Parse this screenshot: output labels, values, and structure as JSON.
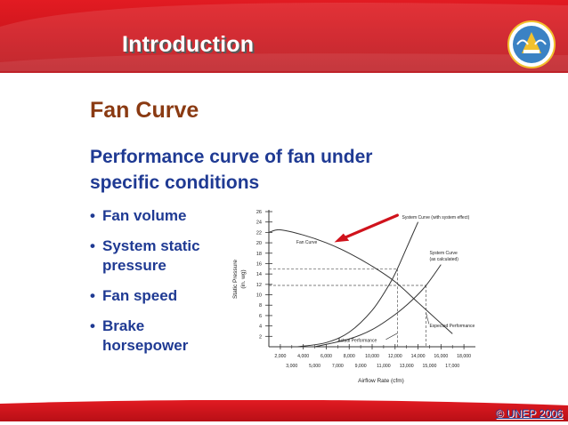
{
  "slide": {
    "title": "Introduction",
    "heading": "Fan Curve",
    "subheading_line1": "Performance curve of fan under",
    "subheading_line2": "specific conditions",
    "bullets": [
      {
        "line1": "Fan volume",
        "line2": ""
      },
      {
        "line1": "System static",
        "line2": "pressure"
      },
      {
        "line1": "Fan speed",
        "line2": ""
      },
      {
        "line1": "Brake",
        "line2": "horsepower"
      }
    ],
    "bullet_glyph": "•",
    "copyright": "© UNEP 2006",
    "colors": {
      "banner": "#d0131c",
      "heading": "#8a3a12",
      "text": "#1f3a93",
      "arrow": "#d0131c"
    },
    "logo_icon": "emblem-icon"
  },
  "chart_data": {
    "type": "line",
    "xlabel": "Airflow Rate (cfm)",
    "ylabel_line1": "Static Pressure",
    "ylabel_line2": "(in. wg)",
    "xlim": [
      1000,
      19000
    ],
    "ylim": [
      0,
      26
    ],
    "x_ticks_top": [
      "2,000",
      "4,000",
      "6,000",
      "8,000",
      "10,000",
      "12,000",
      "14,000",
      "16,000",
      "18,000"
    ],
    "x_ticks_bottom": [
      "3,000",
      "5,000",
      "7,000",
      "9,000",
      "11,000",
      "13,000",
      "15,000",
      "17,000"
    ],
    "y_ticks": [
      "2",
      "4",
      "6",
      "8",
      "10",
      "12",
      "14",
      "16",
      "18",
      "20",
      "22",
      "24",
      "26"
    ],
    "series": [
      {
        "name": "Fan Curve",
        "x": [
          1000,
          2000,
          4000,
          6000,
          8000,
          10000,
          12000,
          14000,
          16000,
          17000
        ],
        "y": [
          22,
          22.5,
          21.5,
          20,
          18,
          15.5,
          12.5,
          8.5,
          4.5,
          2.5
        ]
      },
      {
        "name": "System Curve (with system effect)",
        "x": [
          3500,
          6000,
          8000,
          10000,
          11500,
          12200,
          13000,
          14000
        ],
        "y": [
          0,
          0.8,
          2.8,
          7,
          12,
          15,
          19,
          24
        ]
      },
      {
        "name": "System Curve (as calculated)",
        "x": [
          5000,
          8000,
          10000,
          12000,
          13500,
          14700,
          16000
        ],
        "y": [
          0,
          1.5,
          3.3,
          6.2,
          9,
          11.8,
          15.8
        ]
      }
    ],
    "annotations": [
      {
        "label": "Fan Curve"
      },
      {
        "label": "System Curve (with system effect)"
      },
      {
        "label_line1": "System Curve",
        "label_line2": "(as calculated)"
      },
      {
        "label": "Expected Performance"
      },
      {
        "label": "Actual Performance"
      }
    ],
    "operating_points": [
      {
        "x": 12200,
        "y": 15
      },
      {
        "x": 14700,
        "y": 11.8
      }
    ]
  }
}
